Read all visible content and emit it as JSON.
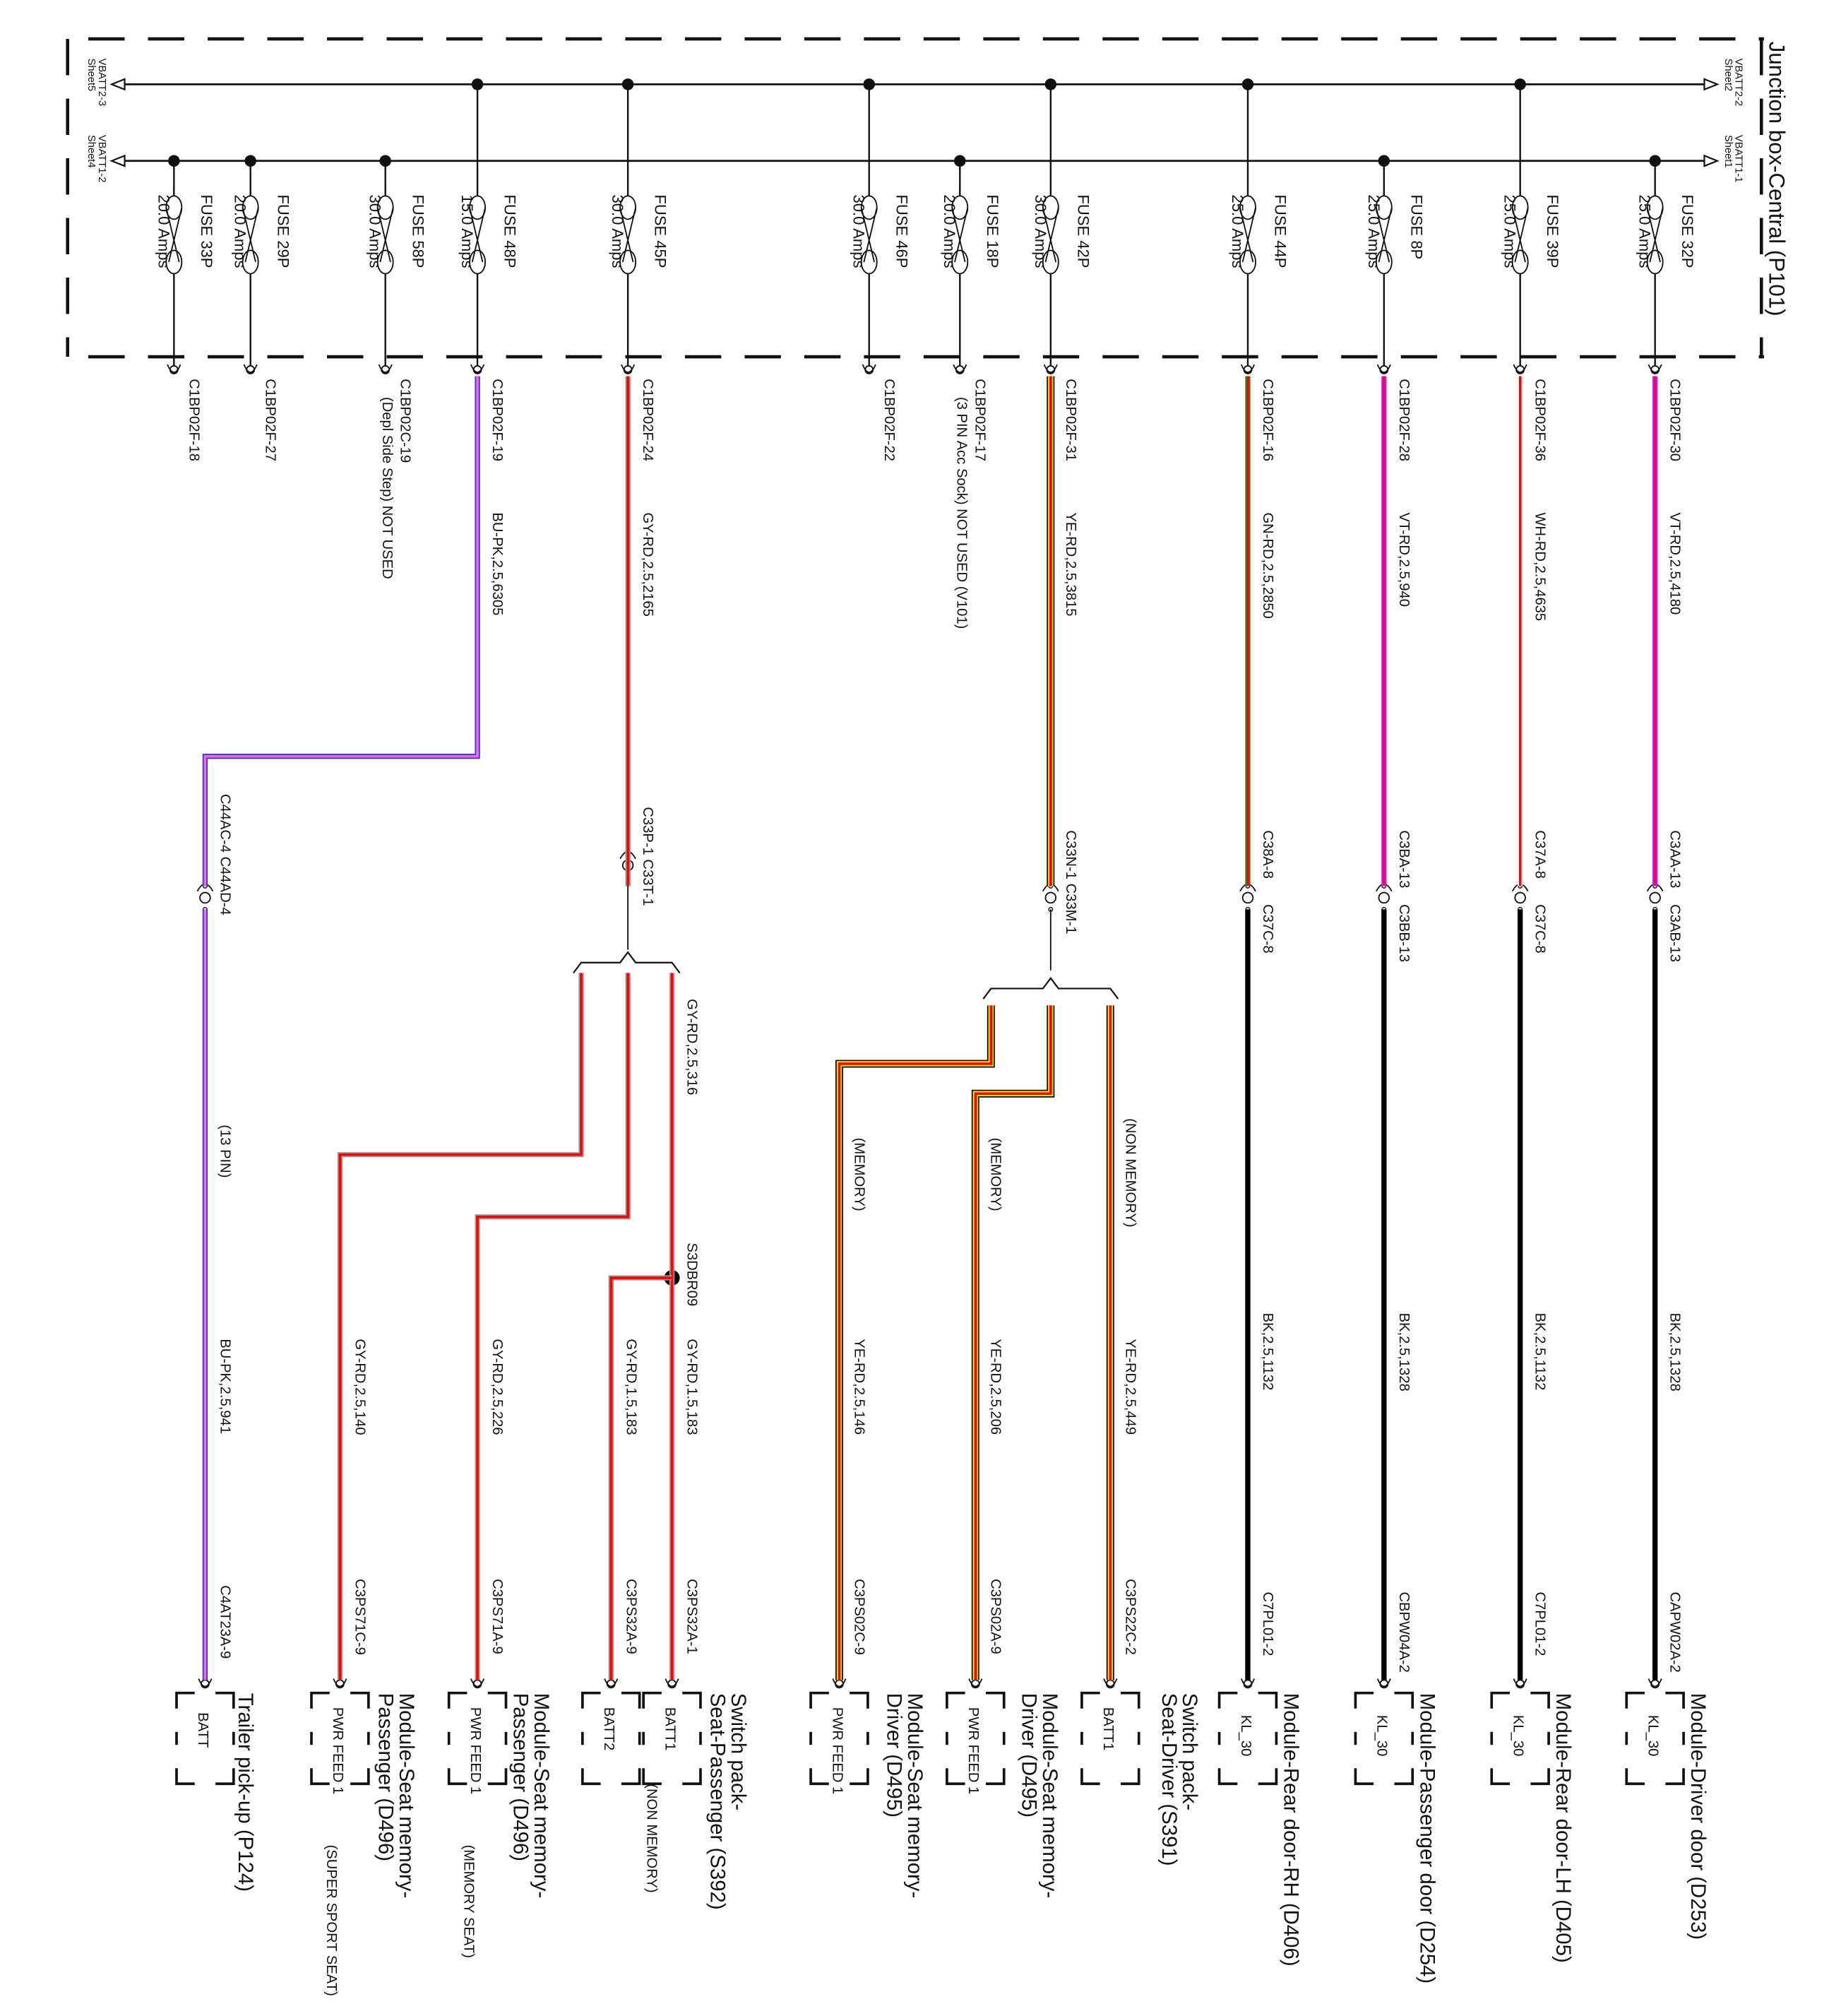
{
  "junction_box": {
    "title": "Junction box-Central (P101)",
    "offsheet": [
      {
        "id": "vbatt2_left",
        "net": "VBATT2-3",
        "sheet": "Sheet5"
      },
      {
        "id": "vbatt1_left",
        "net": "VBATT1-2",
        "sheet": "Sheet4"
      },
      {
        "id": "vbatt2_right",
        "net": "VBATT2-2",
        "sheet": "Sheet2"
      },
      {
        "id": "vbatt1_right",
        "net": "VBATT1-1",
        "sheet": "Sheet1"
      }
    ]
  },
  "circuits": [
    {
      "fuse": "FUSE 33P",
      "rating": "20.0 Amps",
      "bus": "VBATT1",
      "pin": "C1BP02F-18",
      "pin_note": "",
      "wire": "",
      "color": "none"
    },
    {
      "fuse": "FUSE 29P",
      "rating": "20.0 Amps",
      "bus": "VBATT1",
      "pin": "C1BP02F-27",
      "pin_note": "",
      "wire": "",
      "color": "none"
    },
    {
      "fuse": "FUSE 58P",
      "rating": "30.0 Amps",
      "bus": "VBATT1",
      "pin": "C1BP02C-19",
      "pin_note": "(Depl Side Step) NOT USED",
      "wire": "",
      "color": "none"
    },
    {
      "fuse": "FUSE 48P",
      "rating": "15.0 Amps",
      "bus": "VBATT2",
      "pin": "C1BP02F-19",
      "pin_note": "",
      "wire": "BU-PK,2.5,6305",
      "color": "BU-PK",
      "inline": "C44AC-4 C44AD-4",
      "note": "(13 PIN)",
      "wire2": "BU-PK,2.5,941",
      "end_pin": "C4AT23A-9",
      "module": "Trailer pick-up (P124)",
      "module_pin": "BATT",
      "module_note": ""
    },
    {
      "fuse": "FUSE 45P",
      "rating": "30.0 Amps",
      "bus": "VBATT2",
      "pin": "C1BP02F-24",
      "pin_note": "",
      "wire": "GY-RD,2.5,2165",
      "color": "GY-RD",
      "inline": "C33P-1 C33T-1"
    },
    {
      "fuse": "FUSE 46P",
      "rating": "30.0 Amps",
      "bus": "VBATT2",
      "pin": "C1BP02F-22",
      "pin_note": "",
      "wire": "",
      "color": "none"
    },
    {
      "fuse": "FUSE 18P",
      "rating": "20.0 Amps",
      "bus": "VBATT1",
      "pin": "C1BP02F-17",
      "pin_note": "(3 PIN Acc Sock) NOT USED (V101)",
      "wire": "",
      "color": "none"
    },
    {
      "fuse": "FUSE 42P",
      "rating": "30.0 Amps",
      "bus": "VBATT2",
      "pin": "C1BP02F-31",
      "pin_note": "",
      "wire": "YE-RD,2.5,3815",
      "color": "YE-RD",
      "inline": "C33N-1 C33M-1"
    },
    {
      "fuse": "FUSE 44P",
      "rating": "25.0 Amps",
      "bus": "VBATT2",
      "pin": "C1BP02F-16",
      "pin_note": "",
      "wire": "GN-RD,2.5,2850",
      "color": "GN-RD",
      "inline": "C38A-8 C37C-8",
      "wire2": "BK,2.5,1132",
      "end_pin": "C7PL01-2",
      "module": "Module-Rear door-RH (D406)",
      "module_pin": "KL_30"
    },
    {
      "fuse": "FUSE 8P",
      "rating": "25.0 Amps",
      "bus": "VBATT1",
      "pin": "C1BP02F-28",
      "pin_note": "",
      "wire": "VT-RD,2.5,940",
      "color": "VT-RD",
      "inline": "C3BA-13 C3BB-13",
      "wire2": "BK,2.5,1328",
      "end_pin": "CBPW04A-2",
      "module": "Module-Passenger door (D254)",
      "module_pin": "KL_30"
    },
    {
      "fuse": "FUSE 39P",
      "rating": "25.0 Amps",
      "bus": "VBATT2",
      "pin": "C1BP02F-36",
      "pin_note": "",
      "wire": "WH-RD,2.5,4635",
      "color": "WH-RD",
      "inline": "C37A-8 C37C-8",
      "wire2": "BK,2.5,1132",
      "end_pin": "C7PL01-2",
      "module": "Module-Rear door-LH (D405)",
      "module_pin": "KL_30"
    },
    {
      "fuse": "FUSE 32P",
      "rating": "25.0 Amps",
      "bus": "VBATT1",
      "pin": "C1BP02F-30",
      "pin_note": "",
      "wire": "VT-RD,2.5,4180",
      "color": "VT-RD",
      "inline": "C3AA-13 C3AB-13",
      "wire2": "BK,2.5,1328",
      "end_pin": "CAPW02A-2",
      "module": "Module-Driver door (D253)",
      "module_pin": "KL_30"
    }
  ],
  "passenger_branches": [
    {
      "wire": "GY-RD,2.5,140",
      "end_pin": "C3PS71C-9",
      "module": "Module-Seat memory-Passenger (D496)",
      "module_pin": "PWR FEED 1",
      "note": "(SUPER SPORT SEAT)"
    },
    {
      "wire": "GY-RD,2.5,226",
      "end_pin": "C3PS71A-9",
      "module": "Module-Seat memory-Passenger (D496)",
      "module_pin": "PWR FEED 1",
      "note": "(MEMORY SEAT)"
    },
    {
      "wire": "GY-RD,1.5,183",
      "end_pin": "C3PS32A-9",
      "module": "",
      "module_pin": "BATT2",
      "note": "(NON MEMORY)"
    },
    {
      "wire": "GY-RD,1.5,183",
      "end_pin": "C3PS32A-1",
      "module": "Switch pack-Seat-Passenger (S392)",
      "module_pin": "BATT1",
      "note": ""
    }
  ],
  "passenger_trunk": {
    "wire": "GY-RD,2.5,316",
    "splice": "S3DBR09"
  },
  "driver_branches": [
    {
      "wire": "YE-RD,2.5,146",
      "label": "(MEMORY)",
      "end_pin": "C3PS02C-9",
      "module": "Module-Seat memory-Driver (D495)",
      "module_pin": "PWR FEED 1"
    },
    {
      "wire": "YE-RD,2.5,206",
      "label": "(MEMORY)",
      "end_pin": "C3PS02A-9",
      "module": "Module-Seat memory-Driver (D495)",
      "module_pin": "PWR FEED 1"
    },
    {
      "wire": "YE-RD,2.5,449",
      "label": "(NON MEMORY)",
      "end_pin": "C3PS22C-2",
      "module": "Switch pack-Seat-Driver (S391)",
      "module_pin": "BATT1"
    }
  ],
  "wire_colors": {
    "BU-PK": [
      "#3333ff",
      "#ff66cc"
    ],
    "GY-RD": [
      "#a0a0a0",
      "#ff0000"
    ],
    "YE-RD": [
      "#ffee00",
      "#ff0000"
    ],
    "GN-RD": [
      "#228b22",
      "#ff0000"
    ],
    "VT-RD": [
      "#9933ff",
      "#ff0066"
    ],
    "WH-RD": [
      "#ffffff",
      "#ff0000"
    ],
    "BK": [
      "#000000",
      "#000000"
    ]
  }
}
